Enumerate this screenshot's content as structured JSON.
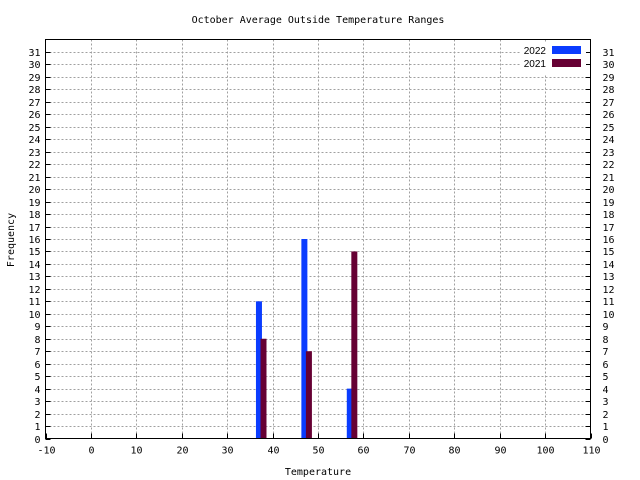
{
  "chart_data": {
    "type": "bar",
    "title": "October Average Outside Temperature Ranges",
    "xlabel": "Temperature",
    "ylabel": "Frequency",
    "xlim": [
      -10,
      110
    ],
    "ylim": [
      0,
      32
    ],
    "xticks": [
      -10,
      0,
      10,
      20,
      30,
      40,
      50,
      60,
      70,
      80,
      90,
      100,
      110
    ],
    "yticks": [
      0,
      1,
      2,
      3,
      4,
      5,
      6,
      7,
      8,
      9,
      10,
      11,
      12,
      13,
      14,
      15,
      16,
      17,
      18,
      19,
      20,
      21,
      22,
      23,
      24,
      25,
      26,
      27,
      28,
      29,
      30,
      31
    ],
    "y_axis_mirrored_right": true,
    "grid": true,
    "legend_position": "top-right",
    "series": [
      {
        "name": "2022",
        "color": "#0a3cff",
        "x": [
          37,
          47,
          57
        ],
        "values": [
          11,
          16,
          4
        ]
      },
      {
        "name": "2021",
        "color": "#660033",
        "x": [
          38,
          48,
          58
        ],
        "values": [
          8,
          7,
          15
        ]
      }
    ]
  }
}
